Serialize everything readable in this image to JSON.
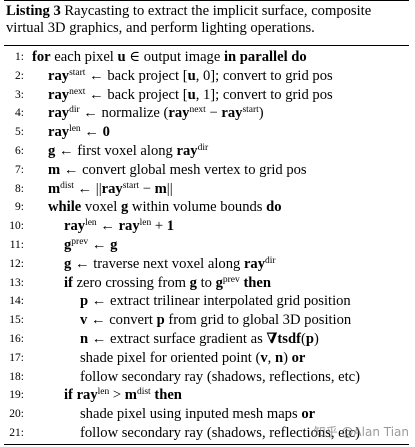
{
  "listing": {
    "label": "Listing 3",
    "caption": "Raycasting to extract the implicit surface, composite virtual 3D graphics, and perform lighting operations."
  },
  "lines": [
    {
      "n": "1:",
      "indent": 0,
      "html": "<b>for</b> each pixel <b>u</b> ∈ output image <b>in parallel do</b>"
    },
    {
      "n": "2:",
      "indent": 1,
      "html": "<b>ray</b><sup>start</sup> ← back project [<b>u</b>, 0]; convert to grid pos"
    },
    {
      "n": "3:",
      "indent": 1,
      "html": "<b>ray</b><sup>next</sup> ← back project [<b>u</b>, 1]; convert to grid pos"
    },
    {
      "n": "4:",
      "indent": 1,
      "html": "<b>ray</b><sup>dir</sup> ← normalize (<b>ray</b><sup>next</sup> − <b>ray</b><sup>start</sup>)"
    },
    {
      "n": "5:",
      "indent": 1,
      "html": "<b>ray</b><sup>len</sup> ← <b>0</b>"
    },
    {
      "n": "6:",
      "indent": 1,
      "html": "<b>g</b> ← first voxel along <b>ray</b><sup>dir</sup>"
    },
    {
      "n": "7:",
      "indent": 1,
      "html": "<b>m</b> ← convert global mesh vertex to grid pos"
    },
    {
      "n": "8:",
      "indent": 1,
      "html": "<b>m</b><sup>dist</sup> ← ||<b>ray</b><sup>start</sup> − <b>m</b>||"
    },
    {
      "n": "9:",
      "indent": 1,
      "html": "<b>while</b> voxel <b>g</b> within volume bounds <b>do</b>"
    },
    {
      "n": "10:",
      "indent": 2,
      "html": "<b>ray</b><sup>len</sup> ← <b>ray</b><sup>len</sup> + <b>1</b>"
    },
    {
      "n": "11:",
      "indent": 2,
      "html": "<b>g</b><sup>prev</sup> ← <b>g</b>"
    },
    {
      "n": "12:",
      "indent": 2,
      "html": "<b>g</b> ← traverse next voxel along <b>ray</b><sup>dir</sup>"
    },
    {
      "n": "13:",
      "indent": 2,
      "html": "<b>if</b> zero crossing from <b>g</b> to <b>g</b><sup>prev</sup> <b>then</b>"
    },
    {
      "n": "14:",
      "indent": 3,
      "html": "<b>p</b> ← extract trilinear interpolated grid position"
    },
    {
      "n": "15:",
      "indent": 3,
      "html": "<b>v</b> ← convert <b>p</b> from grid to global 3D position"
    },
    {
      "n": "16:",
      "indent": 3,
      "html": "<b>n</b> ← extract surface gradient as <b>∇tsdf</b>(<b>p</b>)"
    },
    {
      "n": "17:",
      "indent": 3,
      "html": "shade pixel for oriented point (<b>v</b>, <b>n</b>) <b>or</b>"
    },
    {
      "n": "18:",
      "indent": 3,
      "html": "follow secondary ray (shadows, reflections, etc)"
    },
    {
      "n": "19:",
      "indent": 2,
      "html": "<b>if ray</b><sup>len</sup> &gt; <b>m</b><sup>dist</sup> <b>then</b>"
    },
    {
      "n": "20:",
      "indent": 3,
      "html": "shade pixel using inputed mesh maps <b>or</b>"
    },
    {
      "n": "21:",
      "indent": 3,
      "html": "follow secondary ray (shadows, reflections, etc)"
    }
  ],
  "watermark": "知乎 @Alan Tian"
}
